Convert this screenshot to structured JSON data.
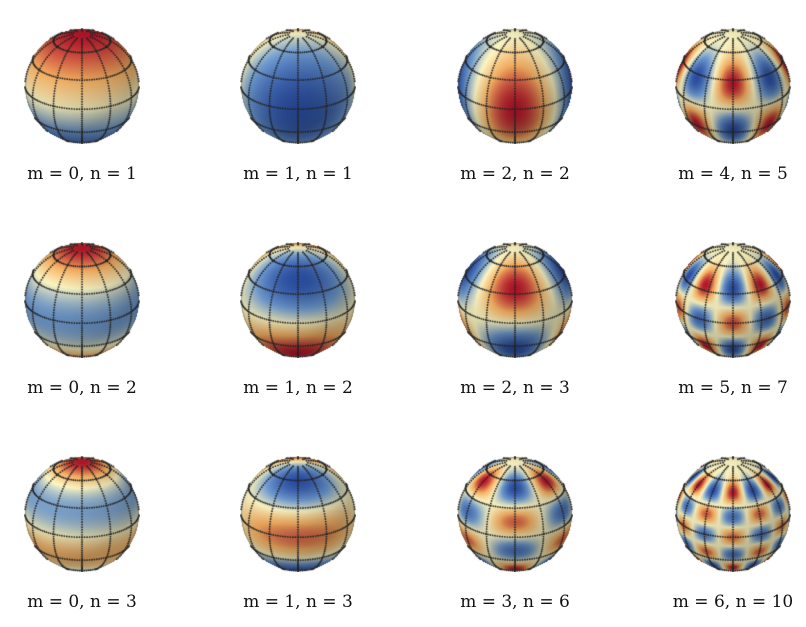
{
  "figure": {
    "colormap": [
      "#2b4fa3",
      "#6f9bd0",
      "#fdf7c4",
      "#f7b062",
      "#b3162a"
    ],
    "grid_color": "#222222",
    "panels": [
      {
        "m": 0,
        "n": 1,
        "label": "m = 0, n = 1"
      },
      {
        "m": 1,
        "n": 1,
        "label": "m = 1, n = 1"
      },
      {
        "m": 2,
        "n": 2,
        "label": "m = 2, n = 2"
      },
      {
        "m": 4,
        "n": 5,
        "label": "m = 4, n = 5"
      },
      {
        "m": 0,
        "n": 2,
        "label": "m = 0, n = 2"
      },
      {
        "m": 1,
        "n": 2,
        "label": "m = 1, n = 2"
      },
      {
        "m": 2,
        "n": 3,
        "label": "m = 2, n = 3"
      },
      {
        "m": 5,
        "n": 7,
        "label": "m = 5, n = 7"
      },
      {
        "m": 0,
        "n": 3,
        "label": "m = 0, n = 3"
      },
      {
        "m": 1,
        "n": 3,
        "label": "m = 1, n = 3"
      },
      {
        "m": 3,
        "n": 6,
        "label": "m = 3, n = 6"
      },
      {
        "m": 6,
        "n": 10,
        "label": "m = 6, n = 10"
      }
    ]
  }
}
